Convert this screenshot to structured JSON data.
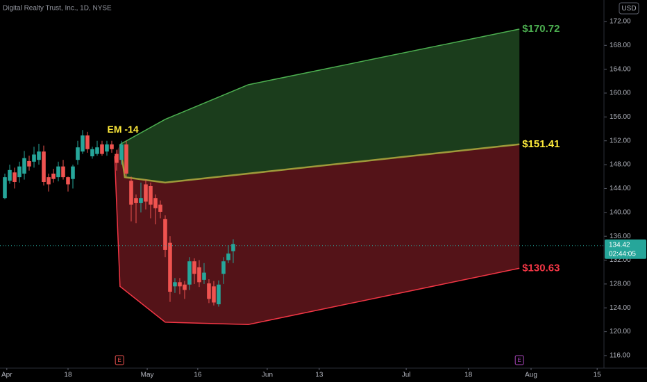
{
  "chart_data": {
    "type": "candlestick",
    "title": "Digital Realty Trust, Inc., 1D, NYSE",
    "currency": "USD",
    "xlim": [
      0,
      124.3
    ],
    "ylim": [
      113.9,
      175.6
    ],
    "yticks": [
      {
        "value": 172,
        "label": "172.00"
      },
      {
        "value": 168,
        "label": "168.00"
      },
      {
        "value": 164,
        "label": "164.00"
      },
      {
        "value": 160,
        "label": "160.00"
      },
      {
        "value": 156,
        "label": "156.00"
      },
      {
        "value": 152,
        "label": "152.00"
      },
      {
        "value": 148,
        "label": "148.00"
      },
      {
        "value": 144,
        "label": "144.00"
      },
      {
        "value": 140,
        "label": "140.00"
      },
      {
        "value": 136,
        "label": "136.00"
      },
      {
        "value": 132,
        "label": "132.00"
      },
      {
        "value": 128,
        "label": "128.00"
      },
      {
        "value": 124,
        "label": "124.00"
      },
      {
        "value": 120,
        "label": "120.00"
      },
      {
        "value": 116,
        "label": "116.00"
      }
    ],
    "xticks": [
      {
        "value": 1.4,
        "label": "Apr"
      },
      {
        "value": 14,
        "label": "18"
      },
      {
        "value": 30.3,
        "label": "May"
      },
      {
        "value": 40.7,
        "label": "16"
      },
      {
        "value": 55,
        "label": "Jun"
      },
      {
        "value": 65.7,
        "label": "13"
      },
      {
        "value": 83.6,
        "label": "Jul"
      },
      {
        "value": 96.4,
        "label": "18"
      },
      {
        "value": 109.3,
        "label": "Aug"
      },
      {
        "value": 122.9,
        "label": "15"
      }
    ],
    "up_color": "#26a69a",
    "down_color": "#ef5350",
    "candles": {
      "x": [
        1,
        2,
        3,
        4,
        5,
        6,
        7,
        8,
        9,
        10,
        11,
        12,
        13,
        14,
        15,
        16,
        17,
        18,
        19,
        20,
        21,
        22,
        23,
        24,
        25,
        26,
        27,
        28,
        29,
        30,
        31,
        32,
        33,
        34,
        35,
        36,
        37,
        38,
        39,
        40,
        41,
        42,
        43,
        44,
        45,
        46,
        47,
        48
      ],
      "open": [
        142.4,
        145.3,
        146.7,
        145.9,
        146.5,
        148.6,
        148.5,
        148.8,
        150.2,
        145.9,
        146.5,
        145.9,
        147.7,
        145.9,
        145.6,
        148.8,
        150.2,
        152.9,
        149.4,
        149.8,
        151.4,
        150.2,
        151.4,
        149.8,
        148.8,
        151.4,
        145.3,
        142.4,
        141.6,
        144.7,
        144.4,
        142.4,
        141.3,
        138.9,
        134.9,
        127.6,
        128.3,
        127.9,
        127.9,
        131.8,
        130.8,
        128.7,
        128.1,
        127.6,
        124.6,
        129.7,
        132.0,
        133.5
      ],
      "high": [
        146.5,
        148.0,
        147.5,
        148.5,
        150.3,
        149.5,
        151.0,
        151.5,
        151.2,
        146.5,
        147.3,
        148.5,
        148.8,
        146.0,
        148.0,
        152.0,
        153.8,
        153.5,
        151.0,
        152.0,
        152.0,
        152.0,
        152.0,
        150.5,
        152.0,
        152.0,
        146.0,
        143.0,
        145.0,
        145.5,
        145.0,
        143.0,
        142.0,
        139.5,
        136.0,
        129.0,
        129.0,
        128.5,
        132.5,
        132.3,
        132.0,
        131.5,
        128.8,
        128.5,
        128.6,
        132.5,
        134.5,
        135.5
      ],
      "low": [
        142.2,
        144.8,
        144.0,
        145.0,
        145.5,
        147.0,
        147.5,
        148.0,
        144.5,
        143.5,
        145.0,
        145.2,
        145.5,
        143.5,
        144.0,
        148.0,
        149.8,
        150.0,
        149.0,
        149.5,
        149.5,
        149.5,
        150.0,
        147.0,
        148.0,
        146.0,
        138.5,
        138.2,
        140.0,
        140.5,
        139.0,
        138.0,
        139.0,
        132.5,
        125.0,
        126.5,
        126.3,
        125.5,
        127.0,
        128.0,
        127.5,
        128.0,
        124.8,
        124.4,
        124.2,
        128.0,
        131.5,
        131.5
      ],
      "close": [
        145.9,
        147.1,
        145.1,
        147.7,
        149.1,
        147.7,
        149.7,
        150.2,
        145.1,
        144.7,
        145.6,
        147.7,
        145.9,
        144.7,
        147.7,
        150.9,
        152.9,
        150.6,
        150.6,
        150.9,
        149.8,
        151.4,
        150.6,
        148.3,
        151.4,
        146.5,
        141.3,
        141.6,
        142.4,
        141.8,
        141.3,
        140.7,
        140.1,
        133.7,
        126.7,
        128.3,
        127.6,
        127.0,
        131.8,
        129.7,
        128.3,
        129.9,
        125.5,
        124.9,
        127.9,
        131.8,
        133.1,
        134.7
      ]
    },
    "bands": [
      {
        "color": "#4caf50",
        "x": [
          24.7,
          34,
          51.1,
          106.9
        ],
        "values": [
          151.4,
          155.6,
          161.4,
          170.72
        ],
        "value_labels": [
          null,
          null,
          null,
          "$170.72"
        ]
      },
      {
        "color": "#9e9a3a",
        "label_color": "#ffeb3b",
        "x": [
          24.7,
          25.7,
          34,
          106.9
        ],
        "values": [
          151.4,
          145.9,
          145.0,
          151.41
        ],
        "value_labels": [
          null,
          null,
          null,
          "$151.41"
        ]
      },
      {
        "color": "#f23645",
        "x": [
          23.6,
          24.7,
          34,
          51.1,
          106.9
        ],
        "values": [
          149.4,
          127.6,
          121.6,
          121.2,
          130.63
        ],
        "value_labels": [
          null,
          null,
          null,
          null,
          "$130.63"
        ]
      }
    ],
    "annotation": {
      "text": "EM -14",
      "x": 25.3,
      "y": 153.8
    },
    "earnings": [
      {
        "x": 24.6,
        "label": "E"
      },
      {
        "x": 106.9,
        "label": "E"
      }
    ],
    "last_price": 134.42,
    "countdown": "02:44:05"
  }
}
